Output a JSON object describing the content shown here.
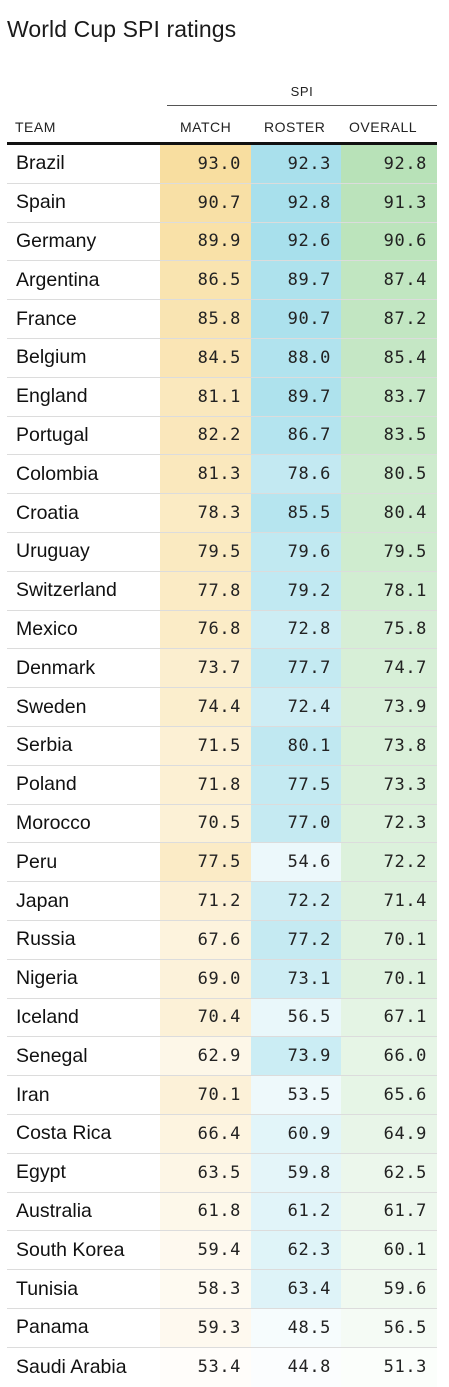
{
  "chart_data": {
    "type": "table",
    "title": "World Cup SPI ratings",
    "group_header": "SPI",
    "columns": [
      "TEAM",
      "MATCH",
      "ROSTER",
      "OVERALL"
    ],
    "colors": {
      "match": "#f8dea0",
      "roster": "#a8e0ec",
      "overall": "#b8e2b8"
    },
    "rows": [
      {
        "team": "Brazil",
        "match": "93.0",
        "roster": "92.3",
        "overall": "92.8"
      },
      {
        "team": "Spain",
        "match": "90.7",
        "roster": "92.8",
        "overall": "91.3"
      },
      {
        "team": "Germany",
        "match": "89.9",
        "roster": "92.6",
        "overall": "90.6"
      },
      {
        "team": "Argentina",
        "match": "86.5",
        "roster": "89.7",
        "overall": "87.4"
      },
      {
        "team": "France",
        "match": "85.8",
        "roster": "90.7",
        "overall": "87.2"
      },
      {
        "team": "Belgium",
        "match": "84.5",
        "roster": "88.0",
        "overall": "85.4"
      },
      {
        "team": "England",
        "match": "81.1",
        "roster": "89.7",
        "overall": "83.7"
      },
      {
        "team": "Portugal",
        "match": "82.2",
        "roster": "86.7",
        "overall": "83.5"
      },
      {
        "team": "Colombia",
        "match": "81.3",
        "roster": "78.6",
        "overall": "80.5"
      },
      {
        "team": "Croatia",
        "match": "78.3",
        "roster": "85.5",
        "overall": "80.4"
      },
      {
        "team": "Uruguay",
        "match": "79.5",
        "roster": "79.6",
        "overall": "79.5"
      },
      {
        "team": "Switzerland",
        "match": "77.8",
        "roster": "79.2",
        "overall": "78.1"
      },
      {
        "team": "Mexico",
        "match": "76.8",
        "roster": "72.8",
        "overall": "75.8"
      },
      {
        "team": "Denmark",
        "match": "73.7",
        "roster": "77.7",
        "overall": "74.7"
      },
      {
        "team": "Sweden",
        "match": "74.4",
        "roster": "72.4",
        "overall": "73.9"
      },
      {
        "team": "Serbia",
        "match": "71.5",
        "roster": "80.1",
        "overall": "73.8"
      },
      {
        "team": "Poland",
        "match": "71.8",
        "roster": "77.5",
        "overall": "73.3"
      },
      {
        "team": "Morocco",
        "match": "70.5",
        "roster": "77.0",
        "overall": "72.3"
      },
      {
        "team": "Peru",
        "match": "77.5",
        "roster": "54.6",
        "overall": "72.2"
      },
      {
        "team": "Japan",
        "match": "71.2",
        "roster": "72.2",
        "overall": "71.4"
      },
      {
        "team": "Russia",
        "match": "67.6",
        "roster": "77.2",
        "overall": "70.1"
      },
      {
        "team": "Nigeria",
        "match": "69.0",
        "roster": "73.1",
        "overall": "70.1"
      },
      {
        "team": "Iceland",
        "match": "70.4",
        "roster": "56.5",
        "overall": "67.1"
      },
      {
        "team": "Senegal",
        "match": "62.9",
        "roster": "73.9",
        "overall": "66.0"
      },
      {
        "team": "Iran",
        "match": "70.1",
        "roster": "53.5",
        "overall": "65.6"
      },
      {
        "team": "Costa Rica",
        "match": "66.4",
        "roster": "60.9",
        "overall": "64.9"
      },
      {
        "team": "Egypt",
        "match": "63.5",
        "roster": "59.8",
        "overall": "62.5"
      },
      {
        "team": "Australia",
        "match": "61.8",
        "roster": "61.2",
        "overall": "61.7"
      },
      {
        "team": "South Korea",
        "match": "59.4",
        "roster": "62.3",
        "overall": "60.1"
      },
      {
        "team": "Tunisia",
        "match": "58.3",
        "roster": "63.4",
        "overall": "59.6"
      },
      {
        "team": "Panama",
        "match": "59.3",
        "roster": "48.5",
        "overall": "56.5"
      },
      {
        "team": "Saudi Arabia",
        "match": "53.4",
        "roster": "44.8",
        "overall": "51.3"
      }
    ]
  }
}
